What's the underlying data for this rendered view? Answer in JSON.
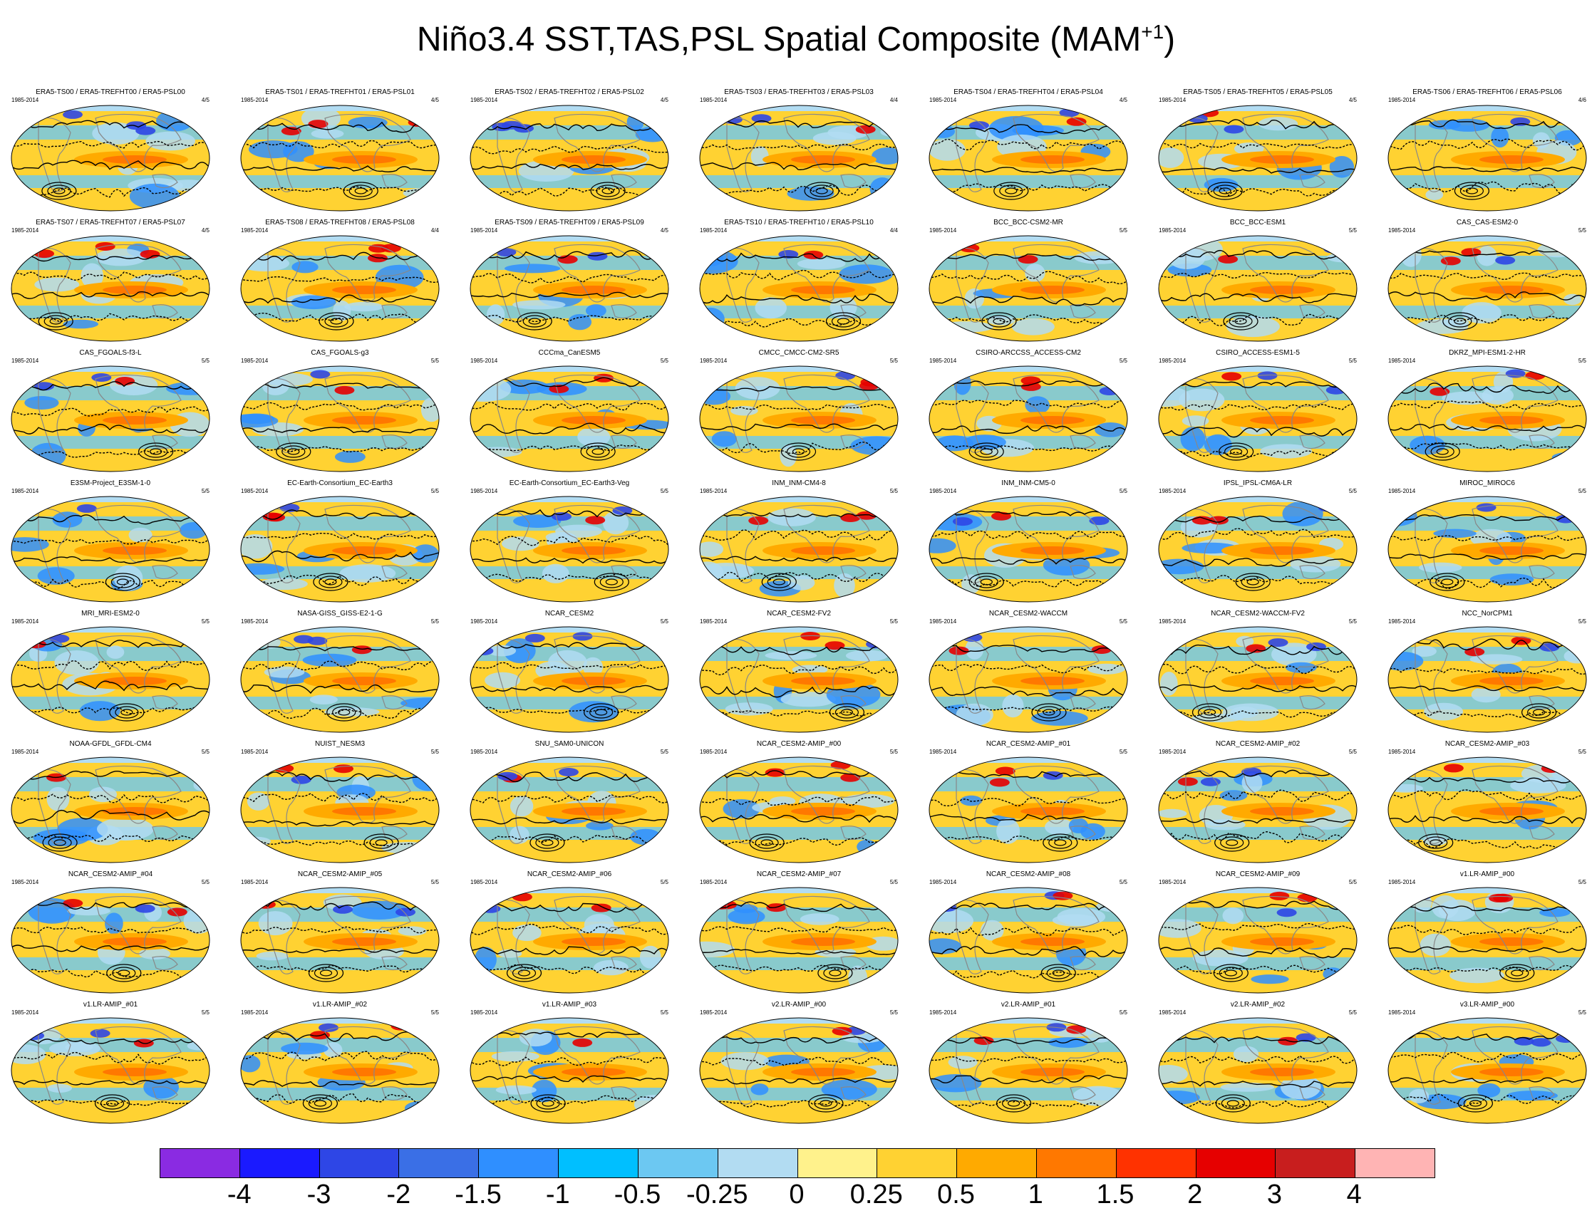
{
  "title_main": "Niño3.4 SST,TAS,PSL Spatial Composite (MAM",
  "title_sup": "+1",
  "title_close": ")",
  "panels": [
    {
      "title": "ERA5-TS00 / ERA5-TREFHT00 / ERA5-PSL00",
      "period": "1985-2014",
      "count": "4/5"
    },
    {
      "title": "ERA5-TS01 / ERA5-TREFHT01 / ERA5-PSL01",
      "period": "1985-2014",
      "count": "4/5"
    },
    {
      "title": "ERA5-TS02 / ERA5-TREFHT02 / ERA5-PSL02",
      "period": "1985-2014",
      "count": "4/5"
    },
    {
      "title": "ERA5-TS03 / ERA5-TREFHT03 / ERA5-PSL03",
      "period": "1985-2014",
      "count": "4/4"
    },
    {
      "title": "ERA5-TS04 / ERA5-TREFHT04 / ERA5-PSL04",
      "period": "1985-2014",
      "count": "4/5"
    },
    {
      "title": "ERA5-TS05 / ERA5-TREFHT05 / ERA5-PSL05",
      "period": "1985-2014",
      "count": "4/5"
    },
    {
      "title": "ERA5-TS06 / ERA5-TREFHT06 / ERA5-PSL06",
      "period": "1985-2014",
      "count": "4/6"
    },
    {
      "title": "ERA5-TS07 / ERA5-TREFHT07 / ERA5-PSL07",
      "period": "1985-2014",
      "count": "4/5"
    },
    {
      "title": "ERA5-TS08 / ERA5-TREFHT08 / ERA5-PSL08",
      "period": "1985-2014",
      "count": "4/4"
    },
    {
      "title": "ERA5-TS09 / ERA5-TREFHT09 / ERA5-PSL09",
      "period": "1985-2014",
      "count": "4/5"
    },
    {
      "title": "ERA5-TS10 / ERA5-TREFHT10 / ERA5-PSL10",
      "period": "1985-2014",
      "count": "4/4"
    },
    {
      "title": "BCC_BCC-CSM2-MR",
      "period": "1985-2014",
      "count": "5/5"
    },
    {
      "title": "BCC_BCC-ESM1",
      "period": "1985-2014",
      "count": "5/5"
    },
    {
      "title": "CAS_CAS-ESM2-0",
      "period": "1985-2014",
      "count": "5/5"
    },
    {
      "title": "CAS_FGOALS-f3-L",
      "period": "1985-2014",
      "count": "5/5"
    },
    {
      "title": "CAS_FGOALS-g3",
      "period": "1985-2014",
      "count": "5/5"
    },
    {
      "title": "CCCma_CanESM5",
      "period": "1985-2014",
      "count": "5/5"
    },
    {
      "title": "CMCC_CMCC-CM2-SR5",
      "period": "1985-2014",
      "count": "5/5"
    },
    {
      "title": "CSIRO-ARCCSS_ACCESS-CM2",
      "period": "1985-2014",
      "count": "5/5"
    },
    {
      "title": "CSIRO_ACCESS-ESM1-5",
      "period": "1985-2014",
      "count": "5/5"
    },
    {
      "title": "DKRZ_MPI-ESM1-2-HR",
      "period": "1985-2014",
      "count": "5/5"
    },
    {
      "title": "E3SM-Project_E3SM-1-0",
      "period": "1985-2014",
      "count": "5/5"
    },
    {
      "title": "EC-Earth-Consortium_EC-Earth3",
      "period": "1985-2014",
      "count": "5/5"
    },
    {
      "title": "EC-Earth-Consortium_EC-Earth3-Veg",
      "period": "1985-2014",
      "count": "5/5"
    },
    {
      "title": "INM_INM-CM4-8",
      "period": "1985-2014",
      "count": "5/5"
    },
    {
      "title": "INM_INM-CM5-0",
      "period": "1985-2014",
      "count": "5/5"
    },
    {
      "title": "IPSL_IPSL-CM6A-LR",
      "period": "1985-2014",
      "count": "5/5"
    },
    {
      "title": "MIROC_MIROC6",
      "period": "1985-2014",
      "count": "5/5"
    },
    {
      "title": "MRI_MRI-ESM2-0",
      "period": "1985-2014",
      "count": "5/5"
    },
    {
      "title": "NASA-GISS_GISS-E2-1-G",
      "period": "1985-2014",
      "count": "5/5"
    },
    {
      "title": "NCAR_CESM2",
      "period": "1985-2014",
      "count": "5/5"
    },
    {
      "title": "NCAR_CESM2-FV2",
      "period": "1985-2014",
      "count": "5/5"
    },
    {
      "title": "NCAR_CESM2-WACCM",
      "period": "1985-2014",
      "count": "5/5"
    },
    {
      "title": "NCAR_CESM2-WACCM-FV2",
      "period": "1985-2014",
      "count": "5/5"
    },
    {
      "title": "NCC_NorCPM1",
      "period": "1985-2014",
      "count": "5/5"
    },
    {
      "title": "NOAA-GFDL_GFDL-CM4",
      "period": "1985-2014",
      "count": "5/5"
    },
    {
      "title": "NUIST_NESM3",
      "period": "1985-2014",
      "count": "5/5"
    },
    {
      "title": "SNU_SAM0-UNICON",
      "period": "1985-2014",
      "count": "5/5"
    },
    {
      "title": "NCAR_CESM2-AMIP_#00",
      "period": "1985-2014",
      "count": "5/5"
    },
    {
      "title": "NCAR_CESM2-AMIP_#01",
      "period": "1985-2014",
      "count": "5/5"
    },
    {
      "title": "NCAR_CESM2-AMIP_#02",
      "period": "1985-2014",
      "count": "5/5"
    },
    {
      "title": "NCAR_CESM2-AMIP_#03",
      "period": "1985-2014",
      "count": "5/5"
    },
    {
      "title": "NCAR_CESM2-AMIP_#04",
      "period": "1985-2014",
      "count": "5/5"
    },
    {
      "title": "NCAR_CESM2-AMIP_#05",
      "period": "1985-2014",
      "count": "5/5"
    },
    {
      "title": "NCAR_CESM2-AMIP_#06",
      "period": "1985-2014",
      "count": "5/5"
    },
    {
      "title": "NCAR_CESM2-AMIP_#07",
      "period": "1985-2014",
      "count": "5/5"
    },
    {
      "title": "NCAR_CESM2-AMIP_#08",
      "period": "1985-2014",
      "count": "5/5"
    },
    {
      "title": "NCAR_CESM2-AMIP_#09",
      "period": "1985-2014",
      "count": "5/5"
    },
    {
      "title": "v1.LR-AMIP_#00",
      "period": "1985-2014",
      "count": "5/5"
    },
    {
      "title": "v1.LR-AMIP_#01",
      "period": "1985-2014",
      "count": "5/5"
    },
    {
      "title": "v1.LR-AMIP_#02",
      "period": "1985-2014",
      "count": "5/5"
    },
    {
      "title": "v1.LR-AMIP_#03",
      "period": "1985-2014",
      "count": "5/5"
    },
    {
      "title": "v2.LR-AMIP_#00",
      "period": "1985-2014",
      "count": "5/5"
    },
    {
      "title": "v2.LR-AMIP_#01",
      "period": "1985-2014",
      "count": "5/5"
    },
    {
      "title": "v2.LR-AMIP_#02",
      "period": "1985-2014",
      "count": "5/5"
    },
    {
      "title": "v3.LR-AMIP_#00",
      "period": "1985-2014",
      "count": "5/5"
    }
  ],
  "chart_data": {
    "type": "heatmap",
    "title": "Niño3.4 SST,TAS,PSL Spatial Composite (MAM+1)",
    "projection": "global map (Robinson-like)",
    "layout": "8 rows x 7 columns of map panels",
    "colorbar": {
      "labels": [
        "-4",
        "-3",
        "-2",
        "-1.5",
        "-1",
        "-0.5",
        "-0.25",
        "0",
        "0.25",
        "0.5",
        "1",
        "1.5",
        "2",
        "3",
        "4"
      ],
      "colors": [
        "#8a2be2",
        "#1a1aff",
        "#2e46e6",
        "#3a6fe6",
        "#2f8fff",
        "#00bfff",
        "#6cc8f2",
        "#b2dcf2",
        "#fff28c",
        "#ffd232",
        "#ffaa00",
        "#ff7800",
        "#ff3200",
        "#e60000",
        "#c81e1e",
        "#ffb4b4"
      ]
    }
  }
}
